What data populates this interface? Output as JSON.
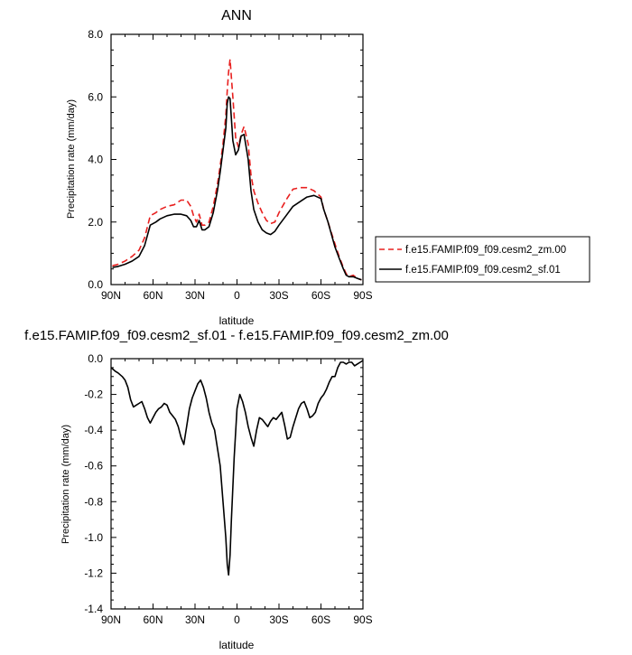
{
  "chart_data": [
    {
      "type": "line",
      "title": "ANN",
      "xlabel": "latitude",
      "ylabel": "Precipitation rate (mm/day)",
      "xlim": [
        90,
        -90
      ],
      "ylim": [
        0,
        8
      ],
      "xticks": [
        90,
        60,
        30,
        0,
        -30,
        -60,
        -90
      ],
      "xtick_labels": [
        "90N",
        "60N",
        "30N",
        "0",
        "30S",
        "60S",
        "90S"
      ],
      "yticks": [
        0,
        2,
        4,
        6,
        8
      ],
      "ytick_labels": [
        "0.0",
        "2.0",
        "4.0",
        "6.0",
        "8.0"
      ],
      "legend_position": "right",
      "series": [
        {
          "name": "f.e15.FAMIP.f09_f09.cesm2_zm.00",
          "color": "#e8201f",
          "dash": "dashed",
          "x": [
            89,
            85,
            80,
            75,
            70,
            66,
            62,
            58,
            55,
            50,
            45,
            40,
            36,
            33,
            31,
            29,
            27,
            25,
            23,
            20,
            17,
            14,
            12,
            10,
            8,
            7,
            6,
            5,
            3,
            1,
            -1,
            -3,
            -5,
            -8,
            -10,
            -12,
            -15,
            -18,
            -21,
            -24,
            -27,
            -30,
            -35,
            -40,
            -45,
            -50,
            -55,
            -60,
            -62,
            -65,
            -70,
            -73,
            -76,
            -78,
            -80,
            -83,
            -86,
            -89
          ],
          "y": [
            0.6,
            0.65,
            0.75,
            0.9,
            1.1,
            1.5,
            2.2,
            2.3,
            2.4,
            2.5,
            2.55,
            2.7,
            2.7,
            2.5,
            2.2,
            2.0,
            2.25,
            1.9,
            1.9,
            2.0,
            2.5,
            3.2,
            3.8,
            4.5,
            5.4,
            6.2,
            6.8,
            7.2,
            6.0,
            4.7,
            4.4,
            4.8,
            5.05,
            4.5,
            3.5,
            3.0,
            2.6,
            2.3,
            2.05,
            1.95,
            2.0,
            2.3,
            2.7,
            3.05,
            3.1,
            3.1,
            3.0,
            2.8,
            2.4,
            2.0,
            1.3,
            0.9,
            0.55,
            0.35,
            0.25,
            0.3,
            0.2,
            0.15
          ]
        },
        {
          "name": "f.e15.FAMIP.f09_f09.cesm2_sf.01",
          "color": "#000000",
          "dash": "solid",
          "x": [
            89,
            85,
            80,
            75,
            70,
            66,
            62,
            58,
            55,
            50,
            45,
            40,
            36,
            33,
            31,
            29,
            27,
            25,
            23,
            20,
            17,
            14,
            12,
            10,
            8,
            7,
            6,
            5,
            3,
            1,
            -1,
            -3,
            -5,
            -8,
            -10,
            -12,
            -15,
            -18,
            -21,
            -24,
            -27,
            -30,
            -35,
            -40,
            -45,
            -50,
            -55,
            -60,
            -62,
            -65,
            -70,
            -73,
            -76,
            -78,
            -80,
            -83,
            -86,
            -89
          ],
          "y": [
            0.55,
            0.58,
            0.65,
            0.75,
            0.9,
            1.25,
            1.9,
            2.0,
            2.1,
            2.2,
            2.25,
            2.25,
            2.2,
            2.05,
            1.85,
            1.85,
            2.05,
            1.75,
            1.75,
            1.85,
            2.3,
            3.0,
            3.6,
            4.3,
            5.0,
            5.8,
            6.0,
            5.95,
            4.6,
            4.15,
            4.3,
            4.75,
            4.8,
            4.0,
            3.0,
            2.4,
            2.0,
            1.75,
            1.65,
            1.6,
            1.7,
            1.9,
            2.2,
            2.5,
            2.65,
            2.8,
            2.85,
            2.75,
            2.4,
            2.0,
            1.2,
            0.85,
            0.5,
            0.3,
            0.25,
            0.25,
            0.2,
            0.15
          ]
        }
      ]
    },
    {
      "type": "line",
      "title": "f.e15.FAMIP.f09_f09.cesm2_sf.01 - f.e15.FAMIP.f09_f09.cesm2_zm.00",
      "xlabel": "latitude",
      "ylabel": "Precipitation rate (mm/day)",
      "xlim": [
        90,
        -90
      ],
      "ylim": [
        -1.4,
        0
      ],
      "xticks": [
        90,
        60,
        30,
        0,
        -30,
        -60,
        -90
      ],
      "xtick_labels": [
        "90N",
        "60N",
        "30N",
        "0",
        "30S",
        "60S",
        "90S"
      ],
      "yticks": [
        -1.4,
        -1.2,
        -1.0,
        -0.8,
        -0.6,
        -0.4,
        -0.2,
        0
      ],
      "ytick_labels": [
        "-1.4",
        "-1.2",
        "-1.0",
        "-0.8",
        "-0.6",
        "-0.4",
        "-0.2",
        "0.0"
      ],
      "series": [
        {
          "color": "#000000",
          "dash": "solid",
          "x": [
            90,
            87,
            85,
            82,
            80,
            78,
            76,
            74,
            72,
            70,
            68,
            66,
            64,
            62,
            60,
            58,
            56,
            54,
            52,
            50,
            48,
            46,
            44,
            42,
            40,
            38,
            36,
            34,
            32,
            30,
            28,
            26,
            24,
            22,
            20,
            18,
            16,
            14,
            12,
            10,
            8,
            7,
            6,
            5,
            4,
            2,
            0,
            -2,
            -4,
            -6,
            -8,
            -10,
            -12,
            -14,
            -16,
            -18,
            -20,
            -22,
            -24,
            -26,
            -28,
            -30,
            -32,
            -34,
            -36,
            -38,
            -40,
            -42,
            -44,
            -46,
            -48,
            -50,
            -52,
            -54,
            -56,
            -58,
            -60,
            -62,
            -64,
            -66,
            -68,
            -70,
            -72,
            -74,
            -76,
            -78,
            -80,
            -82,
            -84,
            -86,
            -88,
            -90
          ],
          "y": [
            -0.05,
            -0.07,
            -0.08,
            -0.1,
            -0.12,
            -0.16,
            -0.23,
            -0.27,
            -0.26,
            -0.25,
            -0.24,
            -0.28,
            -0.33,
            -0.36,
            -0.33,
            -0.3,
            -0.28,
            -0.27,
            -0.25,
            -0.26,
            -0.3,
            -0.32,
            -0.34,
            -0.38,
            -0.44,
            -0.48,
            -0.38,
            -0.28,
            -0.22,
            -0.18,
            -0.14,
            -0.12,
            -0.16,
            -0.22,
            -0.3,
            -0.36,
            -0.4,
            -0.5,
            -0.6,
            -0.8,
            -1.0,
            -1.15,
            -1.21,
            -1.1,
            -0.9,
            -0.55,
            -0.28,
            -0.2,
            -0.24,
            -0.3,
            -0.38,
            -0.44,
            -0.49,
            -0.4,
            -0.33,
            -0.34,
            -0.36,
            -0.38,
            -0.35,
            -0.33,
            -0.34,
            -0.32,
            -0.3,
            -0.37,
            -0.45,
            -0.44,
            -0.38,
            -0.33,
            -0.28,
            -0.25,
            -0.24,
            -0.28,
            -0.33,
            -0.32,
            -0.3,
            -0.25,
            -0.22,
            -0.2,
            -0.17,
            -0.13,
            -0.1,
            -0.1,
            -0.05,
            -0.02,
            -0.02,
            -0.03,
            -0.02,
            -0.02,
            -0.04,
            -0.03,
            -0.02,
            -0.01
          ]
        }
      ]
    }
  ]
}
